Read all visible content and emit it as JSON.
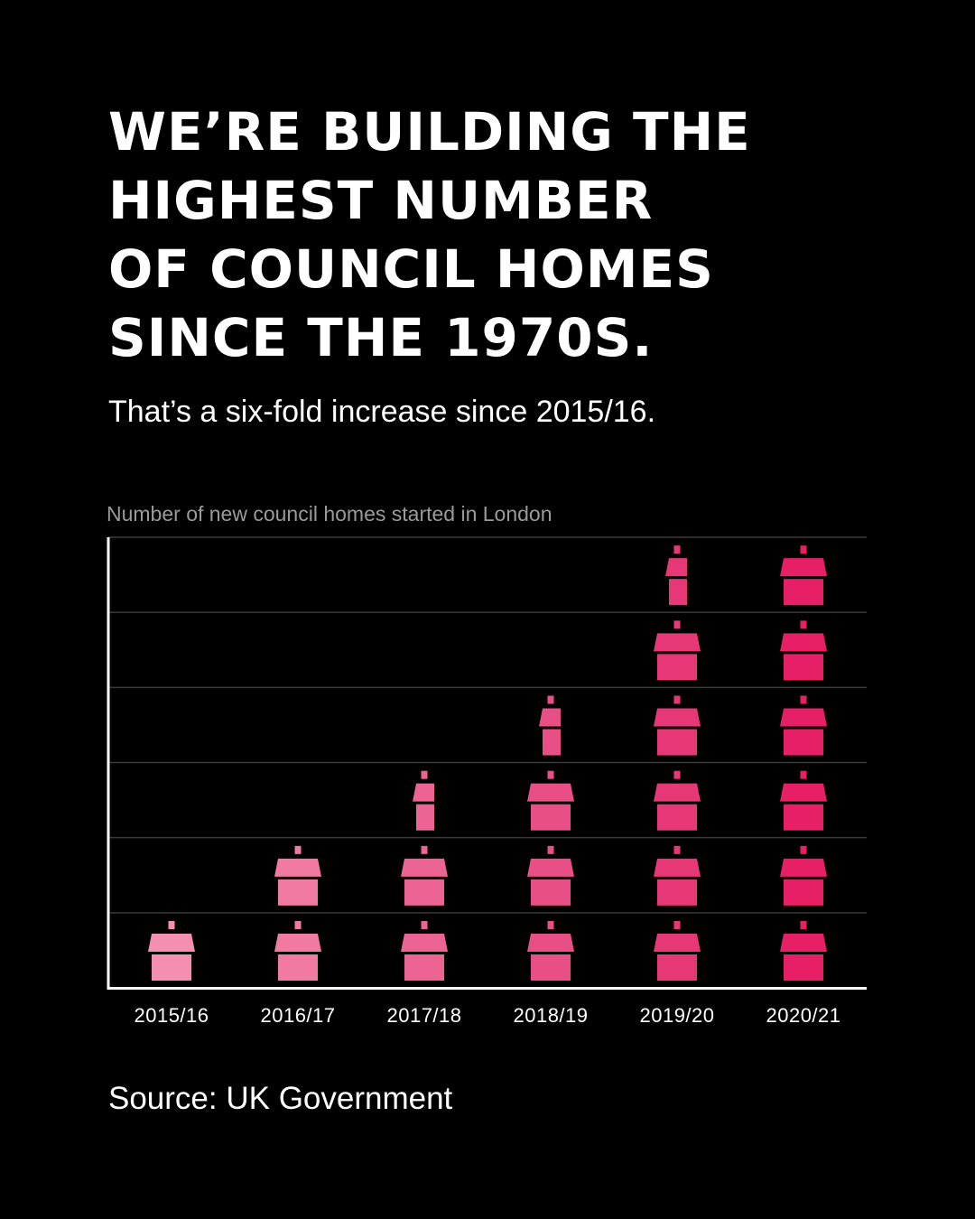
{
  "headline": {
    "lines": [
      "WE’RE BUILDING THE",
      "HIGHEST NUMBER",
      "OF COUNCIL HOMES",
      "SINCE THE 1970S."
    ]
  },
  "subtitle": "That’s a six-fold increase since 2015/16.",
  "source": "Source: UK Government",
  "chart_data": {
    "type": "bar",
    "title": "Number of new council homes started in London",
    "xlabel": "",
    "ylabel": "",
    "categories": [
      "2015/16",
      "2016/17",
      "2017/18",
      "2018/19",
      "2019/20",
      "2020/21"
    ],
    "values": [
      1,
      2,
      2.5,
      3.5,
      5.5,
      6
    ],
    "ylim": [
      0,
      6
    ],
    "grid": true,
    "unit_icon": "house-icon",
    "colors": [
      "#f48fb1",
      "#f07aa2",
      "#ec6494",
      "#e84f86",
      "#e63877",
      "#e61f67"
    ]
  }
}
